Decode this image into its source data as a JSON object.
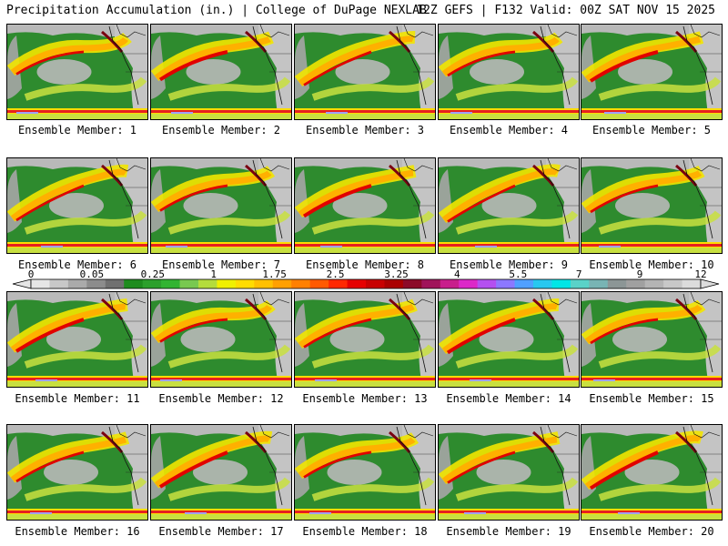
{
  "header": {
    "left": "Precipitation Accumulation (in.) | College of DuPage NEXLAB",
    "right": "12Z GEFS | F132 Valid: 00Z SAT NOV 15 2025"
  },
  "panels": [
    {
      "caption": "Ensemble Member: 1"
    },
    {
      "caption": "Ensemble Member: 2"
    },
    {
      "caption": "Ensemble Member: 3"
    },
    {
      "caption": "Ensemble Member: 4"
    },
    {
      "caption": "Ensemble Member: 5"
    },
    {
      "caption": "Ensemble Member: 6"
    },
    {
      "caption": "Ensemble Member: 7"
    },
    {
      "caption": "Ensemble Member: 8"
    },
    {
      "caption": "Ensemble Member: 9"
    },
    {
      "caption": "Ensemble Member: 10"
    },
    {
      "caption": "Ensemble Member: 11"
    },
    {
      "caption": "Ensemble Member: 12"
    },
    {
      "caption": "Ensemble Member: 13"
    },
    {
      "caption": "Ensemble Member: 14"
    },
    {
      "caption": "Ensemble Member: 15"
    },
    {
      "caption": "Ensemble Member: 16"
    },
    {
      "caption": "Ensemble Member: 17"
    },
    {
      "caption": "Ensemble Member: 18"
    },
    {
      "caption": "Ensemble Member: 19"
    },
    {
      "caption": "Ensemble Member: 20"
    }
  ],
  "legend": {
    "tick_labels": [
      "0",
      "0.05",
      "0.25",
      "1",
      "1.75",
      "2.5",
      "3.25",
      "4",
      "5.5",
      "7",
      "9",
      "12"
    ],
    "colors": [
      "#e6e6e6",
      "#c8c8c8",
      "#aaaaaa",
      "#8c8c8c",
      "#707070",
      "#1e8c1e",
      "#2ca02c",
      "#32b432",
      "#78c850",
      "#b4dc3c",
      "#f0f000",
      "#ffdc00",
      "#ffc000",
      "#ffa000",
      "#ff8000",
      "#ff5a00",
      "#ff2800",
      "#e60000",
      "#c80000",
      "#aa0000",
      "#8c0a28",
      "#a0145a",
      "#c81e8c",
      "#dc28c8",
      "#b450f0",
      "#8c78ff",
      "#50a0ff",
      "#28c8f0",
      "#00e6e6",
      "#5ad2c8",
      "#78b4b4",
      "#8c9696",
      "#a0a0a0",
      "#b4b4b4",
      "#c8c8c8",
      "#dcdcdc"
    ]
  }
}
